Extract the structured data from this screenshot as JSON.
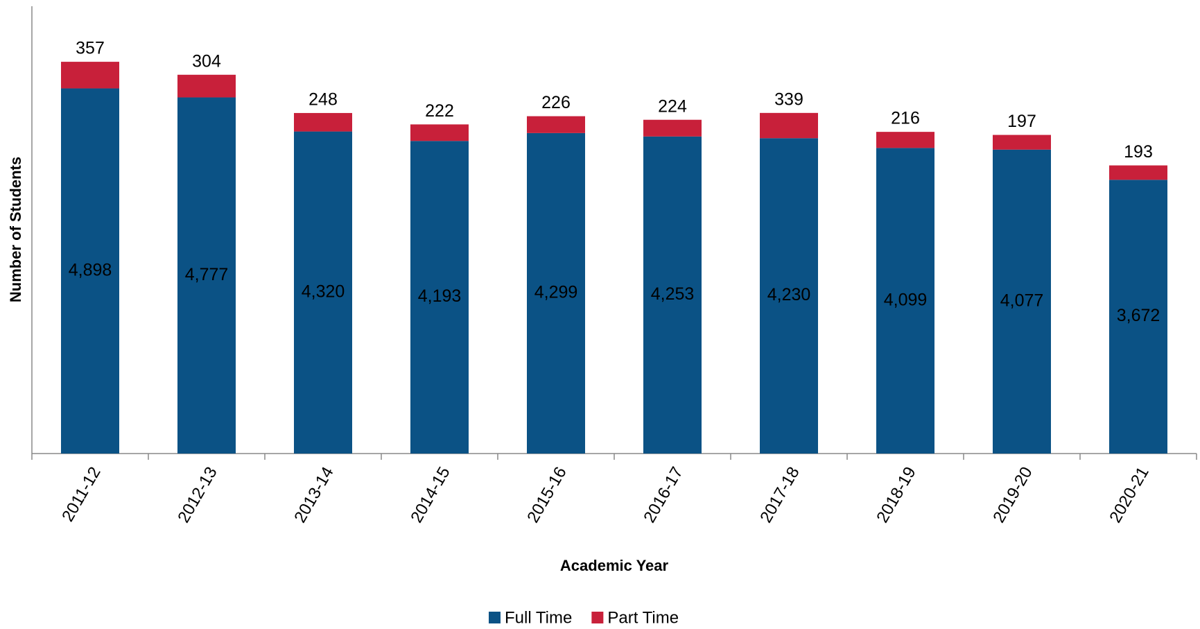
{
  "chart_data": {
    "type": "bar",
    "stacked": true,
    "x_label": "Academic Year",
    "y_label": "Number of Students",
    "categories": [
      "2011-12",
      "2012-13",
      "2013-14",
      "2014-15",
      "2015-16",
      "2016-17",
      "2017-18",
      "2018-19",
      "2019-20",
      "2020-21"
    ],
    "series": [
      {
        "name": "Full Time",
        "color": "#0b5285",
        "values": [
          4898,
          4777,
          4320,
          4193,
          4299,
          4253,
          4230,
          4099,
          4077,
          3672
        ],
        "value_labels": [
          "4,898",
          "4,777",
          "4,320",
          "4,193",
          "4,299",
          "4,253",
          "4,230",
          "4,099",
          "4,077",
          "3,672"
        ]
      },
      {
        "name": "Part Time",
        "color": "#c8203a",
        "values": [
          357,
          304,
          248,
          222,
          226,
          224,
          339,
          216,
          197,
          193
        ]
      }
    ],
    "ylim": [
      0,
      6000
    ],
    "legend": "bottom"
  }
}
